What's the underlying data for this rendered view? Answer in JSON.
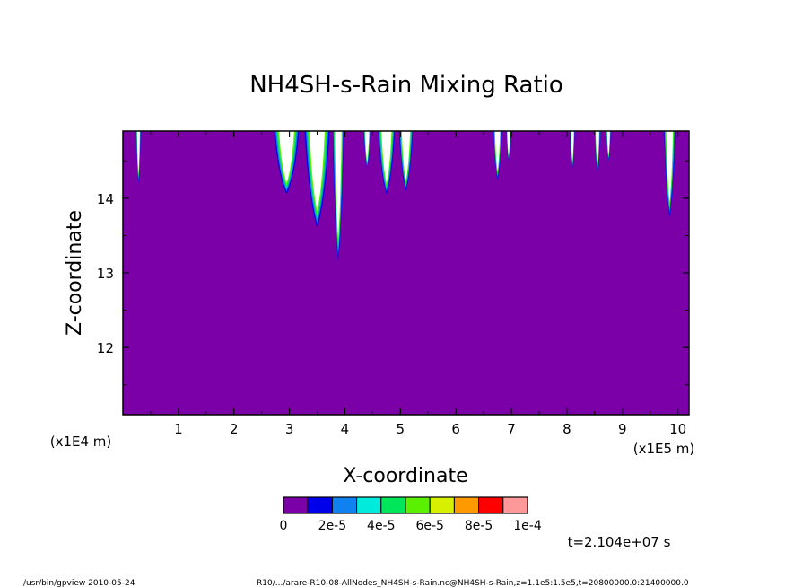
{
  "chart_data": {
    "type": "heatmap",
    "title": "NH4SH-s-Rain Mixing Ratio",
    "xlabel": "X-coordinate",
    "ylabel": "Z-coordinate",
    "x_unit": "(x1E5 m)",
    "y_unit": "(x1E4 m)",
    "xlim": [
      0.0,
      10.2
    ],
    "ylim": [
      11.1,
      14.9
    ],
    "x_ticks": [
      1,
      2,
      3,
      4,
      5,
      6,
      7,
      8,
      9,
      10
    ],
    "y_ticks": [
      12,
      13,
      14
    ],
    "background_value": 0,
    "colorbar": {
      "colors": [
        "#7b00a8",
        "#0000ea",
        "#0f82f0",
        "#00ebdb",
        "#00e65a",
        "#5af000",
        "#d7f000",
        "#ff9900",
        "#ff0000",
        "#ff9999"
      ],
      "labels": [
        "0",
        "2e-5",
        "4e-5",
        "6e-5",
        "8e-5",
        "1e-4"
      ]
    },
    "plumes": [
      {
        "x": 0.28,
        "w": 0.08,
        "bottom": 14.2
      },
      {
        "x": 2.95,
        "w": 0.45,
        "bottom": 14.05
      },
      {
        "x": 3.5,
        "w": 0.45,
        "bottom": 13.6
      },
      {
        "x": 3.88,
        "w": 0.2,
        "bottom": 13.15
      },
      {
        "x": 4.4,
        "w": 0.12,
        "bottom": 14.4
      },
      {
        "x": 4.75,
        "w": 0.3,
        "bottom": 14.05
      },
      {
        "x": 5.1,
        "w": 0.25,
        "bottom": 14.1
      },
      {
        "x": 6.75,
        "w": 0.15,
        "bottom": 14.25
      },
      {
        "x": 6.95,
        "w": 0.08,
        "bottom": 14.5
      },
      {
        "x": 8.1,
        "w": 0.08,
        "bottom": 14.4
      },
      {
        "x": 8.55,
        "w": 0.1,
        "bottom": 14.35
      },
      {
        "x": 8.75,
        "w": 0.08,
        "bottom": 14.5
      },
      {
        "x": 9.85,
        "w": 0.2,
        "bottom": 13.75
      }
    ]
  },
  "time_label": "t=2.104e+07 s",
  "footer_left": "/usr/bin/gpview  2010-05-24",
  "footer_right": "R10/.../arare-R10-08-AllNodes_NH4SH-s-Rain.nc@NH4SH-s-Rain,z=1.1e5:1.5e5,t=20800000.0:21400000.0"
}
